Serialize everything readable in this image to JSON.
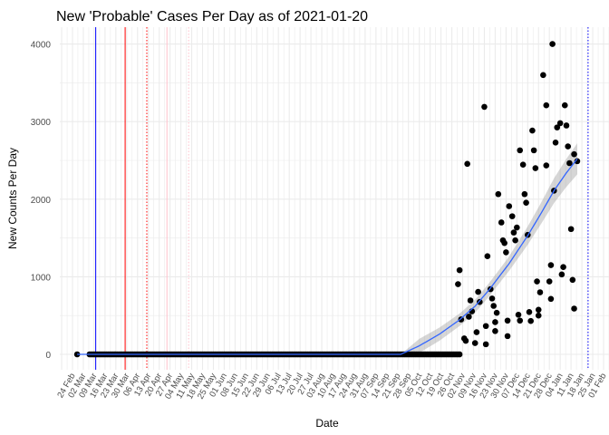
{
  "chart_data": {
    "type": "scatter",
    "title": "New 'Probable' Cases Per Day as of 2021-01-20",
    "xlabel": "Date",
    "ylabel": "New Counts Per Day",
    "x_origin": "2020-02-24",
    "x_unit": "days since x_origin",
    "xlim": [
      -8,
      350
    ],
    "ylim": [
      -200,
      4150
    ],
    "y_ticks": [
      0,
      1000,
      2000,
      3000,
      4000
    ],
    "x_tick_labels": [
      "24 Feb",
      "02 Mar",
      "09 Mar",
      "16 Mar",
      "23 Mar",
      "30 Mar",
      "06 Apr",
      "13 Apr",
      "20 Apr",
      "27 Apr",
      "04 May",
      "11 May",
      "18 May",
      "25 May",
      "01 Jun",
      "08 Jun",
      "15 Jun",
      "22 Jun",
      "29 Jun",
      "06 Jul",
      "13 Jul",
      "20 Jul",
      "27 Jul",
      "03 Aug",
      "10 Aug",
      "17 Aug",
      "24 Aug",
      "31 Aug",
      "07 Sep",
      "14 Sep",
      "21 Sep",
      "28 Sep",
      "05 Oct",
      "12 Oct",
      "19 Oct",
      "26 Oct",
      "02 Nov",
      "09 Nov",
      "16 Nov",
      "23 Nov",
      "30 Nov",
      "07 Dec",
      "14 Dec",
      "21 Dec",
      "28 Dec",
      "04 Jan",
      "11 Jan",
      "18 Jan",
      "25 Jan",
      "01 Feb"
    ],
    "x_tick_step_days": 7,
    "grid": true,
    "zero_points": {
      "extra_days": [
        3
      ],
      "range_days": [
        11,
        250
      ],
      "value": 0
    },
    "points": [
      [
        310,
        4000
      ],
      [
        304,
        3600
      ],
      [
        266,
        3190
      ],
      [
        306,
        3210
      ],
      [
        318,
        3210
      ],
      [
        315,
        2980
      ],
      [
        313,
        2925
      ],
      [
        319,
        2950
      ],
      [
        297,
        2885
      ],
      [
        289,
        2630
      ],
      [
        298,
        2630
      ],
      [
        312,
        2730
      ],
      [
        320,
        2680
      ],
      [
        324,
        2580
      ],
      [
        255,
        2455
      ],
      [
        291,
        2445
      ],
      [
        299,
        2400
      ],
      [
        306,
        2435
      ],
      [
        321,
        2465
      ],
      [
        326,
        2490
      ],
      [
        311,
        2110
      ],
      [
        275,
        2065
      ],
      [
        292,
        2065
      ],
      [
        293,
        1955
      ],
      [
        282,
        1910
      ],
      [
        284,
        1780
      ],
      [
        277,
        1700
      ],
      [
        287,
        1635
      ],
      [
        285,
        1570
      ],
      [
        286,
        1470
      ],
      [
        294,
        1540
      ],
      [
        278,
        1470
      ],
      [
        279,
        1435
      ],
      [
        280,
        1315
      ],
      [
        322,
        1615
      ],
      [
        268,
        1265
      ],
      [
        250,
        1085
      ],
      [
        249,
        905
      ],
      [
        309,
        1150
      ],
      [
        317,
        1125
      ],
      [
        316,
        1030
      ],
      [
        323,
        960
      ],
      [
        300,
        940
      ],
      [
        308,
        940
      ],
      [
        302,
        800
      ],
      [
        309,
        715
      ],
      [
        262,
        805
      ],
      [
        270,
        840
      ],
      [
        257,
        695
      ],
      [
        263,
        675
      ],
      [
        271,
        720
      ],
      [
        272,
        625
      ],
      [
        258,
        555
      ],
      [
        256,
        485
      ],
      [
        274,
        535
      ],
      [
        251,
        450
      ],
      [
        281,
        435
      ],
      [
        288,
        510
      ],
      [
        289,
        435
      ],
      [
        295,
        545
      ],
      [
        296,
        430
      ],
      [
        301,
        575
      ],
      [
        301,
        500
      ],
      [
        324,
        590
      ],
      [
        273,
        415
      ],
      [
        267,
        365
      ],
      [
        273,
        300
      ],
      [
        261,
        285
      ],
      [
        253,
        205
      ],
      [
        254,
        175
      ],
      [
        260,
        145
      ],
      [
        267,
        130
      ],
      [
        281,
        235
      ]
    ],
    "trend": {
      "name": "smooth fit",
      "color": "#3366FF",
      "points": [
        [
          3,
          0
        ],
        [
          212,
          0
        ],
        [
          224,
          110
        ],
        [
          237,
          260
        ],
        [
          250,
          445
        ],
        [
          260,
          620
        ],
        [
          269,
          830
        ],
        [
          282,
          1170
        ],
        [
          294,
          1530
        ],
        [
          303,
          1830
        ],
        [
          311,
          2110
        ],
        [
          319,
          2340
        ],
        [
          326,
          2520
        ]
      ],
      "ci_halfwidth": [
        [
          3,
          0
        ],
        [
          212,
          0
        ],
        [
          224,
          90
        ],
        [
          250,
          80
        ],
        [
          280,
          90
        ],
        [
          300,
          130
        ],
        [
          326,
          200
        ]
      ]
    },
    "vlines": [
      {
        "day": 15,
        "color": "#0000FF",
        "style": "solid"
      },
      {
        "day": 34,
        "color": "#FF0000",
        "style": "solid"
      },
      {
        "day": 48,
        "color": "#FF0000",
        "style": "dotted"
      },
      {
        "day": 61,
        "color": "#FFC0CB",
        "style": "solid"
      },
      {
        "day": 75,
        "color": "#FFC0CB",
        "style": "dotted"
      },
      {
        "day": 333,
        "color": "#0000FF",
        "style": "dotted"
      }
    ]
  }
}
